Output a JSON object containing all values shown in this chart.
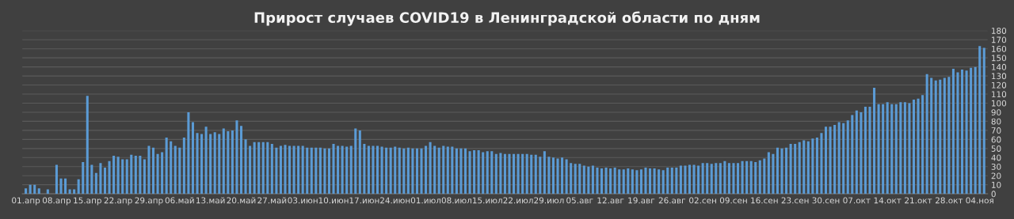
{
  "chart_data": {
    "type": "bar",
    "title": "Прирост случаев COVID19 в Ленинградской области по дням",
    "categories": [
      "01.апр",
      null,
      null,
      null,
      null,
      null,
      null,
      "08.апр",
      null,
      null,
      null,
      null,
      null,
      null,
      "15.апр",
      null,
      null,
      null,
      null,
      null,
      null,
      "22.апр",
      null,
      null,
      null,
      null,
      null,
      null,
      "29.апр",
      null,
      null,
      null,
      null,
      null,
      null,
      "06.май",
      null,
      null,
      null,
      null,
      null,
      null,
      "13.май",
      null,
      null,
      null,
      null,
      null,
      null,
      "20.май",
      null,
      null,
      null,
      null,
      null,
      null,
      "27.май",
      null,
      null,
      null,
      null,
      null,
      null,
      "03.июн",
      null,
      null,
      null,
      null,
      null,
      null,
      "10.июн",
      null,
      null,
      null,
      null,
      null,
      null,
      "17.июн",
      null,
      null,
      null,
      null,
      null,
      null,
      "24.июн",
      null,
      null,
      null,
      null,
      null,
      null,
      "01.июл",
      null,
      null,
      null,
      null,
      null,
      null,
      "08.июл",
      null,
      null,
      null,
      null,
      null,
      null,
      "15.июл",
      null,
      null,
      null,
      null,
      null,
      null,
      "22.июл",
      null,
      null,
      null,
      null,
      null,
      null,
      "29.июл",
      null,
      null,
      null,
      null,
      null,
      null,
      "05.авг",
      null,
      null,
      null,
      null,
      null,
      null,
      "12.авг",
      null,
      null,
      null,
      null,
      null,
      null,
      "19.авг",
      null,
      null,
      null,
      null,
      null,
      null,
      "26.авг",
      null,
      null,
      null,
      null,
      null,
      null,
      "02.сен",
      null,
      null,
      null,
      null,
      null,
      null,
      "09.сен",
      null,
      null,
      null,
      null,
      null,
      null,
      "16.сен",
      null,
      null,
      null,
      null,
      null,
      null,
      "23.сен",
      null,
      null,
      null,
      null,
      null,
      null,
      "30.сен",
      null,
      null,
      null,
      null,
      null,
      null,
      "07.окт",
      null,
      null,
      null,
      null,
      null,
      null,
      "14.окт",
      null,
      null,
      null,
      null,
      null,
      null,
      "21.окт",
      null,
      null,
      null,
      null,
      null,
      null,
      "28.окт",
      null,
      null,
      null,
      null,
      null,
      null,
      "04.ноя",
      null
    ],
    "values": [
      6,
      10,
      10,
      6,
      0,
      5,
      0,
      32,
      17,
      17,
      5,
      5,
      16,
      35,
      108,
      32,
      23,
      34,
      29,
      36,
      42,
      41,
      38,
      38,
      43,
      42,
      42,
      38,
      53,
      51,
      44,
      46,
      62,
      58,
      53,
      51,
      62,
      90,
      79,
      67,
      66,
      74,
      66,
      68,
      66,
      72,
      69,
      70,
      81,
      75,
      60,
      53,
      57,
      57,
      57,
      57,
      55,
      51,
      53,
      54,
      53,
      53,
      53,
      53,
      51,
      51,
      51,
      51,
      50,
      50,
      55,
      53,
      53,
      52,
      53,
      72,
      70,
      55,
      53,
      53,
      53,
      52,
      51,
      51,
      52,
      51,
      50,
      51,
      50,
      50,
      50,
      53,
      57,
      53,
      51,
      53,
      52,
      52,
      50,
      50,
      50,
      47,
      48,
      48,
      46,
      47,
      47,
      44,
      45,
      44,
      44,
      44,
      44,
      44,
      44,
      43,
      43,
      41,
      47,
      41,
      40,
      39,
      40,
      38,
      34,
      33,
      33,
      31,
      30,
      31,
      29,
      28,
      29,
      28,
      29,
      27,
      27,
      28,
      27,
      26,
      27,
      29,
      28,
      28,
      27,
      26,
      29,
      29,
      29,
      31,
      31,
      32,
      32,
      31,
      34,
      34,
      33,
      34,
      34,
      36,
      34,
      34,
      34,
      36,
      36,
      36,
      35,
      37,
      39,
      46,
      44,
      51,
      50,
      51,
      55,
      55,
      57,
      59,
      58,
      61,
      62,
      67,
      74,
      74,
      76,
      79,
      78,
      81,
      87,
      92,
      90,
      96,
      96,
      117,
      99,
      99,
      101,
      99,
      99,
      101,
      101,
      100,
      104,
      105,
      109,
      132,
      128,
      125,
      126,
      128,
      129,
      138,
      134,
      137,
      136,
      139,
      140,
      163,
      161
    ],
    "color": "#5b9bd5",
    "ylim": [
      0,
      180
    ],
    "yticks": [
      0,
      10,
      20,
      30,
      40,
      50,
      60,
      70,
      80,
      90,
      100,
      110,
      120,
      130,
      140,
      150,
      160,
      170,
      180
    ],
    "grid": "y"
  }
}
